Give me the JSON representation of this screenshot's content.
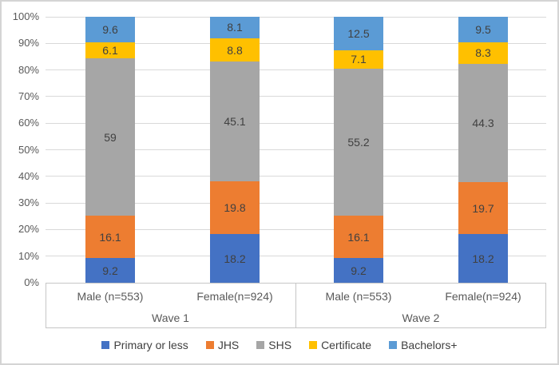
{
  "chart_data": {
    "type": "bar",
    "variant": "stacked-100-percent",
    "title": "",
    "xlabel": "",
    "ylabel": "",
    "grid": true,
    "legend_position": "bottom",
    "y_axis": {
      "min": 0,
      "max": 100,
      "ticks": [
        "0%",
        "10%",
        "20%",
        "30%",
        "40%",
        "50%",
        "60%",
        "70%",
        "80%",
        "90%",
        "100%"
      ]
    },
    "groups": [
      {
        "label": "Wave 1"
      },
      {
        "label": "Wave 2"
      }
    ],
    "categories": [
      {
        "label": "Male (n=553)",
        "group": "Wave 1"
      },
      {
        "label": "Female(n=924)",
        "group": "Wave 1"
      },
      {
        "label": "Male (n=553)",
        "group": "Wave 2"
      },
      {
        "label": "Female(n=924)",
        "group": "Wave 2"
      }
    ],
    "series": [
      {
        "name": "Primary or less",
        "color": "#4472C4",
        "values": [
          9.2,
          18.2,
          9.2,
          18.2
        ]
      },
      {
        "name": "JHS",
        "color": "#ED7D31",
        "values": [
          16.1,
          19.8,
          16.1,
          19.7
        ]
      },
      {
        "name": "SHS",
        "color": "#A6A6A6",
        "values": [
          59,
          45.1,
          55.2,
          44.3
        ]
      },
      {
        "name": "Certificate",
        "color": "#FFC000",
        "values": [
          6.1,
          8.8,
          7.1,
          8.3
        ]
      },
      {
        "name": "Bachelors+",
        "color": "#5B9BD5",
        "values": [
          9.6,
          8.1,
          12.5,
          9.5
        ]
      }
    ],
    "style": {
      "gridline_color": "#d9d9d9",
      "axis_border_color": "#c6c6c6",
      "tick_text_color": "#595959",
      "data_label_color": "#404040",
      "legend_text_color": "#404040"
    }
  }
}
